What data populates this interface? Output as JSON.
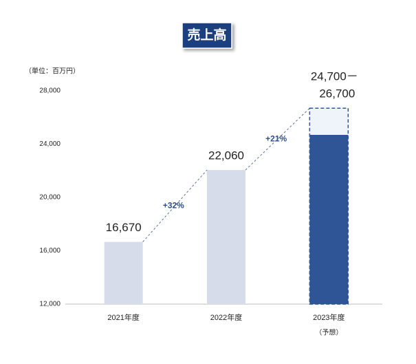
{
  "chart_data": {
    "type": "bar",
    "title": "売上高",
    "unit_label": "（単位：百万円）",
    "categories": [
      "2021年度",
      "2022年度",
      "2023年度"
    ],
    "category_notes": [
      null,
      null,
      "（予想）"
    ],
    "values": [
      16670,
      22060,
      24700
    ],
    "value_labels": [
      "16,670",
      "22,060",
      "24,700－"
    ],
    "range_high": [
      null,
      null,
      26700
    ],
    "range_high_labels": [
      null,
      null,
      "26,700"
    ],
    "colors": [
      "#d6dce9",
      "#d6dce9",
      "#2f5597"
    ],
    "range_color": "#eef4f9",
    "annotations": [
      "+32%",
      "+21%"
    ],
    "ylim": [
      12000,
      28000
    ],
    "yticks": [
      {
        "value": 12000,
        "label": "12,000"
      },
      {
        "value": 16000,
        "label": "16,000"
      },
      {
        "value": 20000,
        "label": "20,000"
      },
      {
        "value": 24000,
        "label": "24,000"
      },
      {
        "value": 28000,
        "label": "28,000"
      }
    ],
    "grid": false
  }
}
